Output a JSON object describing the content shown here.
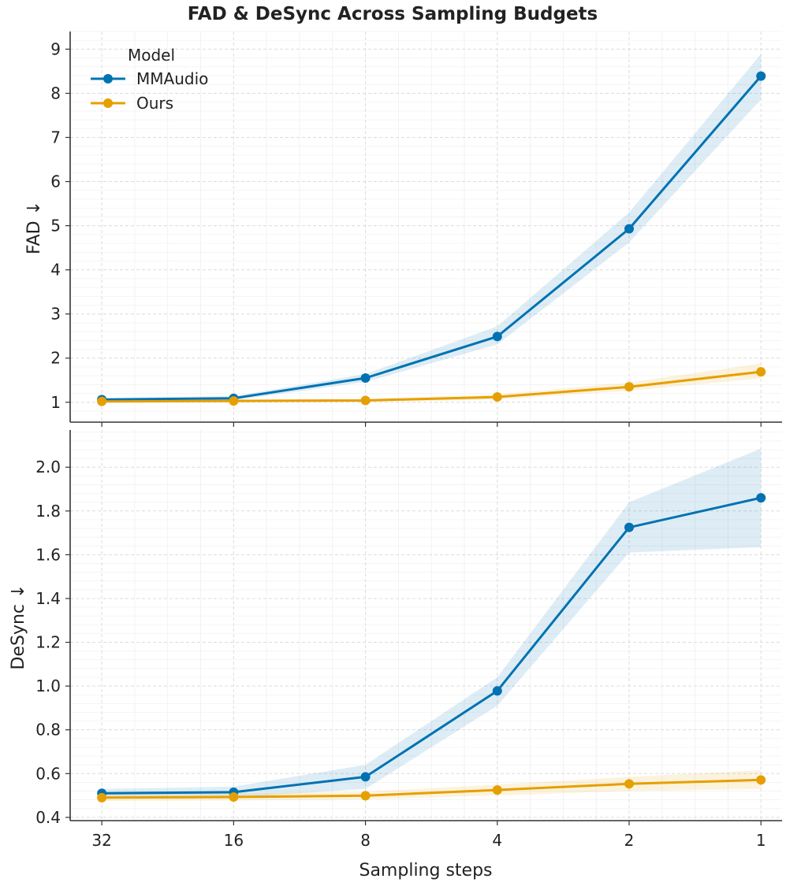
{
  "chart_data": {
    "type": "line",
    "title": "FAD & DeSync Across Sampling Budgets",
    "xlabel": "Sampling steps",
    "categories": [
      "32",
      "16",
      "8",
      "4",
      "2",
      "1"
    ],
    "legend": {
      "title": "Model",
      "placement": "top-left",
      "entries": [
        "MMAudio",
        "Ours"
      ]
    },
    "colors": {
      "MMAudio": "#0072b2",
      "Ours": "#e69f00"
    },
    "grid": true,
    "panels": [
      {
        "ylabel": "FAD ↓",
        "ylim": [
          0.55,
          9.4
        ],
        "yticks": [
          1,
          2,
          3,
          4,
          5,
          6,
          7,
          8,
          9
        ],
        "ytick_labels": [
          "1",
          "2",
          "3",
          "4",
          "5",
          "6",
          "7",
          "8",
          "9"
        ],
        "series": [
          {
            "name": "MMAudio",
            "values": [
              1.06,
              1.09,
              1.55,
              2.49,
              4.93,
              8.39
            ],
            "lower": [
              1.02,
              1.04,
              1.46,
              2.31,
              4.62,
              7.86
            ],
            "upper": [
              1.1,
              1.14,
              1.64,
              2.72,
              5.3,
              8.89
            ]
          },
          {
            "name": "Ours",
            "values": [
              1.02,
              1.03,
              1.04,
              1.12,
              1.35,
              1.69
            ],
            "lower": [
              0.99,
              1.0,
              1.0,
              1.06,
              1.26,
              1.54
            ],
            "upper": [
              1.05,
              1.06,
              1.08,
              1.18,
              1.45,
              1.88
            ]
          }
        ]
      },
      {
        "ylabel": "DeSync ↓",
        "ylim": [
          0.385,
          2.17
        ],
        "yticks": [
          0.4,
          0.6,
          0.8,
          1.0,
          1.2,
          1.4,
          1.6,
          1.8,
          2.0
        ],
        "ytick_labels": [
          "0.4",
          "0.6",
          "0.8",
          "1.0",
          "1.2",
          "1.4",
          "1.6",
          "1.8",
          "2.0"
        ],
        "series": [
          {
            "name": "MMAudio",
            "values": [
              0.51,
              0.515,
              0.585,
              0.978,
              1.725,
              1.86
            ],
            "lower": [
              0.49,
              0.49,
              0.53,
              0.91,
              1.61,
              1.635
            ],
            "upper": [
              0.53,
              0.54,
              0.64,
              1.04,
              1.84,
              2.085
            ]
          },
          {
            "name": "Ours",
            "values": [
              0.49,
              0.493,
              0.499,
              0.525,
              0.553,
              0.571
            ],
            "lower": [
              0.475,
              0.477,
              0.482,
              0.5,
              0.52,
              0.53
            ],
            "upper": [
              0.505,
              0.51,
              0.517,
              0.55,
              0.585,
              0.615
            ]
          }
        ]
      }
    ]
  }
}
